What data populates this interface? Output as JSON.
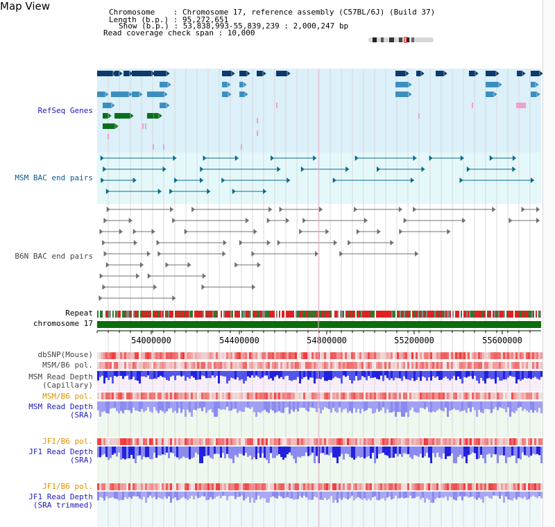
{
  "app": {
    "title": "Map View"
  },
  "header": {
    "chromosome_line": "Chromosome    : Chromosome 17, reference assembly (C57BL/6J) (Build 37)",
    "length_line": "Length (b.p.) : 95,272,651",
    "show_line": "Show (b.p.) : 53,838,993-55,839,239 : 2,000,247 bp",
    "coverage_line": "Read coverage check span : 10,000"
  },
  "tracks": {
    "refseq": "RefSeq Genes",
    "msm_bac": "MSM BAC end pairs",
    "b6n_bac": "B6N BAC end pairs",
    "repeat": "Repeat",
    "chromosome": "chromosome 17",
    "dbsnp": "dbSNP(Mouse)",
    "msm_b6_pol_1": "MSM/B6 pol.",
    "msm_depth_cap_1": "MSM Read Depth",
    "msm_depth_cap_2": "(Capillary)",
    "msm_b6_pol_2": "MSM/B6 pol.",
    "msm_depth_sra_1": "MSM Read Depth",
    "msm_depth_sra_2": "(SRA)",
    "jf1_b6_pol_1": "JF1/B6 pol.",
    "jf1_depth_sra_1": "JF1 Read Depth",
    "jf1_depth_sra_2": "(SRA)",
    "jf1_b6_pol_2": "JF1/B6 pol.",
    "jf1_depth_trim_1": "JF1 Read Depth",
    "jf1_depth_trim_2": "(SRA trimmed)"
  },
  "axis": {
    "ticks": [
      "54000000",
      "54400000",
      "54800000",
      "55200000",
      "55600000"
    ]
  },
  "colors": {
    "gene_blue": "#0b3a6b",
    "gene_mid": "#3b8fc0",
    "gene_green": "#0a6e1e",
    "gene_pink": "#f2a0c8",
    "msm_bac": "#0c6b8c",
    "b6n_bac": "#707070",
    "chromosome_bar": "#0a6e0a",
    "depth_dark": "#2222dd",
    "depth_light": "#8a8af0"
  }
}
